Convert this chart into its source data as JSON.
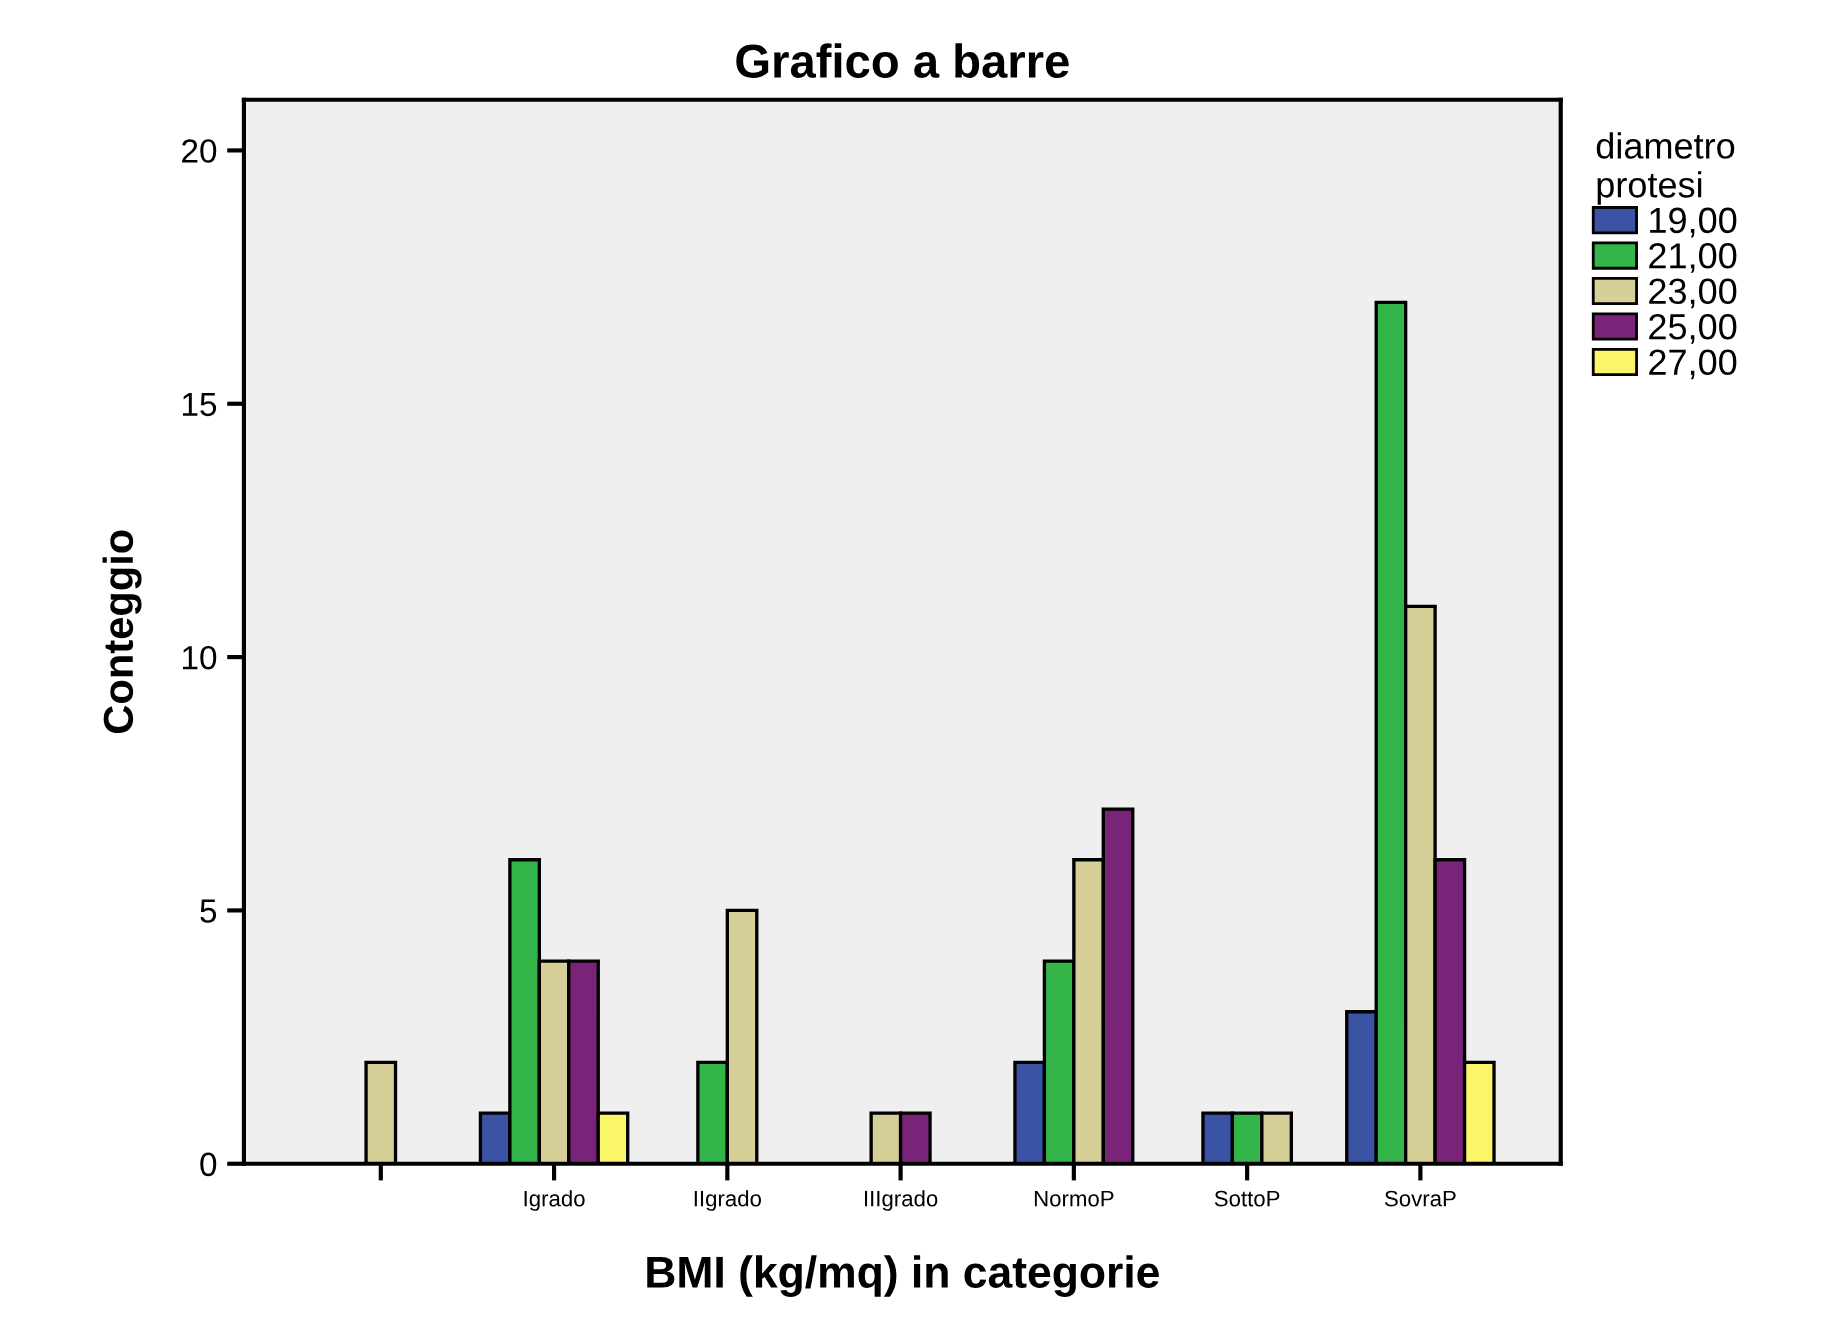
{
  "chart_data": {
    "type": "bar",
    "title": "Grafico a barre",
    "xlabel": "BMI (kg/mq) in categorie",
    "ylabel": "Conteggio",
    "legend_title": "diametro\nprotesi",
    "categories": [
      null,
      "Igrado",
      "IIgrado",
      "IIIgrado",
      "NormoP",
      "SottoP",
      "SovraP"
    ],
    "series": [
      {
        "name": "19,00",
        "color": "#3a53a4",
        "values": [
          null,
          1,
          null,
          null,
          2,
          1,
          3
        ]
      },
      {
        "name": "21,00",
        "color": "#33b54a",
        "values": [
          null,
          6,
          2,
          null,
          4,
          1,
          17
        ]
      },
      {
        "name": "23,00",
        "color": "#d6cf98",
        "values": [
          2,
          4,
          5,
          1,
          6,
          1,
          11
        ]
      },
      {
        "name": "25,00",
        "color": "#7a2479",
        "values": [
          null,
          4,
          null,
          1,
          7,
          null,
          6
        ]
      },
      {
        "name": "27,00",
        "color": "#fbf56a",
        "values": [
          null,
          1,
          null,
          null,
          null,
          null,
          2
        ]
      }
    ],
    "ylim": [
      0,
      21
    ],
    "yticks": [
      0,
      5,
      10,
      15,
      20
    ],
    "grid": false,
    "legend": "right"
  }
}
